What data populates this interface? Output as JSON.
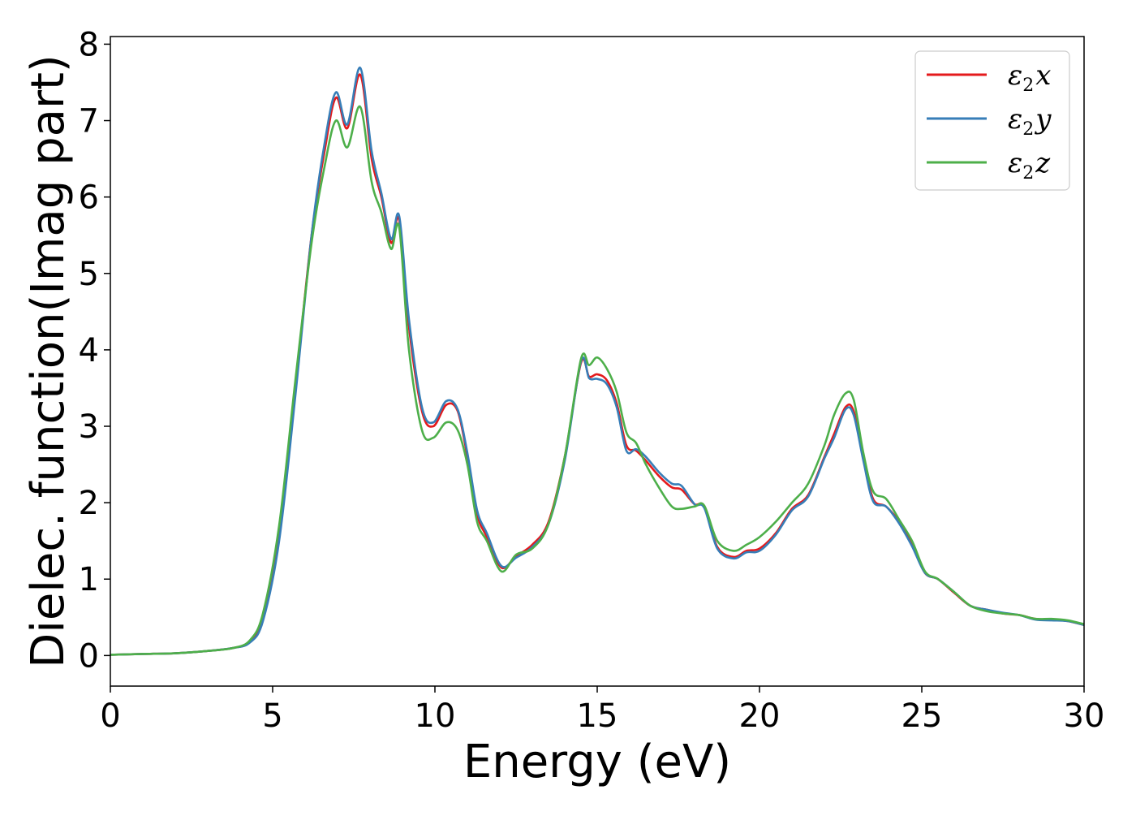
{
  "chart_data": {
    "type": "line",
    "title": "",
    "xlabel": "Energy (eV)",
    "ylabel": "Dielec. function(Imag part)",
    "xlim": [
      0,
      30
    ],
    "ylim": [
      -0.4,
      8.1
    ],
    "xticks": [
      0,
      5,
      10,
      15,
      20,
      25,
      30
    ],
    "yticks": [
      0,
      1,
      2,
      3,
      4,
      5,
      6,
      7,
      8
    ],
    "grid": false,
    "legend_position": "top-right",
    "series": [
      {
        "name": "ε₂x",
        "legend_base": "ε",
        "legend_sub": "2",
        "legend_var": "x",
        "color": "#e41a1c",
        "x": [
          0,
          1,
          2,
          3,
          3.8,
          4.3,
          4.7,
          5.2,
          5.7,
          6.2,
          6.6,
          6.95,
          7.3,
          7.7,
          8.05,
          8.35,
          8.65,
          8.9,
          9.2,
          9.6,
          9.95,
          10.35,
          10.7,
          11.0,
          11.3,
          11.6,
          12.05,
          12.5,
          13.0,
          13.5,
          14.0,
          14.5,
          14.75,
          15.0,
          15.3,
          15.6,
          15.9,
          16.2,
          16.5,
          16.9,
          17.3,
          17.6,
          18.0,
          18.3,
          18.7,
          19.2,
          19.6,
          20.0,
          20.5,
          21.0,
          21.5,
          22.0,
          22.3,
          22.65,
          22.9,
          23.2,
          23.5,
          23.9,
          24.3,
          24.7,
          25.1,
          25.5,
          26.0,
          26.5,
          27.0,
          27.5,
          28.0,
          28.5,
          29.0,
          29.5,
          30.0
        ],
        "y": [
          0.01,
          0.02,
          0.03,
          0.06,
          0.1,
          0.18,
          0.5,
          1.6,
          3.5,
          5.5,
          6.6,
          7.3,
          6.9,
          7.6,
          6.5,
          6.0,
          5.4,
          5.7,
          4.3,
          3.2,
          3.0,
          3.28,
          3.2,
          2.6,
          1.85,
          1.55,
          1.15,
          1.3,
          1.45,
          1.75,
          2.6,
          3.83,
          3.65,
          3.68,
          3.6,
          3.3,
          2.75,
          2.68,
          2.55,
          2.35,
          2.2,
          2.17,
          1.98,
          1.95,
          1.42,
          1.29,
          1.37,
          1.4,
          1.6,
          1.92,
          2.1,
          2.6,
          2.9,
          3.25,
          3.2,
          2.6,
          2.05,
          1.95,
          1.75,
          1.45,
          1.08,
          1.0,
          0.82,
          0.65,
          0.6,
          0.55,
          0.53,
          0.48,
          0.47,
          0.45,
          0.4
        ]
      },
      {
        "name": "ε₂y",
        "legend_base": "ε",
        "legend_sub": "2",
        "legend_var": "y",
        "color": "#377eb8",
        "x": [
          0,
          1,
          2,
          3,
          3.8,
          4.3,
          4.7,
          5.2,
          5.7,
          6.2,
          6.6,
          6.95,
          7.3,
          7.7,
          8.05,
          8.35,
          8.65,
          8.9,
          9.2,
          9.6,
          9.95,
          10.35,
          10.7,
          11.0,
          11.3,
          11.6,
          12.05,
          12.5,
          13.0,
          13.5,
          14.0,
          14.5,
          14.75,
          15.0,
          15.3,
          15.6,
          15.9,
          16.2,
          16.5,
          16.9,
          17.3,
          17.6,
          18.0,
          18.3,
          18.7,
          19.2,
          19.6,
          20.0,
          20.5,
          21.0,
          21.5,
          22.0,
          22.3,
          22.65,
          22.9,
          23.2,
          23.5,
          23.9,
          24.3,
          24.7,
          25.1,
          25.5,
          26.0,
          26.5,
          27.0,
          27.5,
          28.0,
          28.5,
          29.0,
          29.5,
          30.0
        ],
        "y": [
          0.01,
          0.02,
          0.03,
          0.06,
          0.1,
          0.17,
          0.45,
          1.5,
          3.4,
          5.5,
          6.7,
          7.37,
          6.95,
          7.69,
          6.6,
          6.05,
          5.45,
          5.75,
          4.4,
          3.25,
          3.05,
          3.33,
          3.22,
          2.65,
          1.9,
          1.6,
          1.17,
          1.28,
          1.42,
          1.72,
          2.55,
          3.85,
          3.63,
          3.62,
          3.55,
          3.25,
          2.68,
          2.7,
          2.6,
          2.4,
          2.25,
          2.22,
          1.98,
          1.93,
          1.4,
          1.27,
          1.35,
          1.37,
          1.58,
          1.9,
          2.08,
          2.58,
          2.85,
          3.22,
          3.15,
          2.55,
          2.02,
          1.95,
          1.73,
          1.43,
          1.08,
          1.0,
          0.83,
          0.65,
          0.6,
          0.56,
          0.53,
          0.47,
          0.46,
          0.45,
          0.4
        ]
      },
      {
        "name": "ε₂z",
        "legend_base": "ε",
        "legend_sub": "2",
        "legend_var": "z",
        "color": "#4daf4a",
        "x": [
          0,
          1,
          2,
          3,
          3.8,
          4.3,
          4.7,
          5.2,
          5.7,
          6.2,
          6.6,
          6.95,
          7.3,
          7.7,
          8.05,
          8.35,
          8.65,
          8.9,
          9.2,
          9.6,
          9.95,
          10.35,
          10.7,
          11.0,
          11.3,
          11.6,
          12.05,
          12.5,
          13.0,
          13.5,
          14.0,
          14.5,
          14.75,
          15.0,
          15.3,
          15.6,
          15.9,
          16.2,
          16.5,
          16.9,
          17.3,
          17.6,
          18.0,
          18.3,
          18.7,
          19.2,
          19.6,
          20.0,
          20.5,
          21.0,
          21.5,
          22.0,
          22.3,
          22.65,
          22.9,
          23.2,
          23.5,
          23.9,
          24.3,
          24.7,
          25.1,
          25.5,
          26.0,
          26.5,
          27.0,
          27.5,
          28.0,
          28.5,
          29.0,
          29.5,
          30.0
        ],
        "y": [
          0.01,
          0.02,
          0.03,
          0.06,
          0.1,
          0.2,
          0.55,
          1.7,
          3.6,
          5.4,
          6.4,
          7.0,
          6.65,
          7.18,
          6.2,
          5.8,
          5.32,
          5.6,
          4.0,
          2.95,
          2.85,
          3.05,
          2.95,
          2.5,
          1.75,
          1.5,
          1.1,
          1.32,
          1.4,
          1.72,
          2.6,
          3.88,
          3.8,
          3.9,
          3.75,
          3.45,
          2.92,
          2.78,
          2.5,
          2.2,
          1.95,
          1.92,
          1.95,
          1.96,
          1.5,
          1.37,
          1.45,
          1.55,
          1.75,
          2.0,
          2.25,
          2.75,
          3.15,
          3.43,
          3.35,
          2.65,
          2.15,
          2.05,
          1.78,
          1.5,
          1.1,
          1.0,
          0.83,
          0.65,
          0.58,
          0.55,
          0.53,
          0.48,
          0.48,
          0.46,
          0.41
        ]
      }
    ]
  }
}
